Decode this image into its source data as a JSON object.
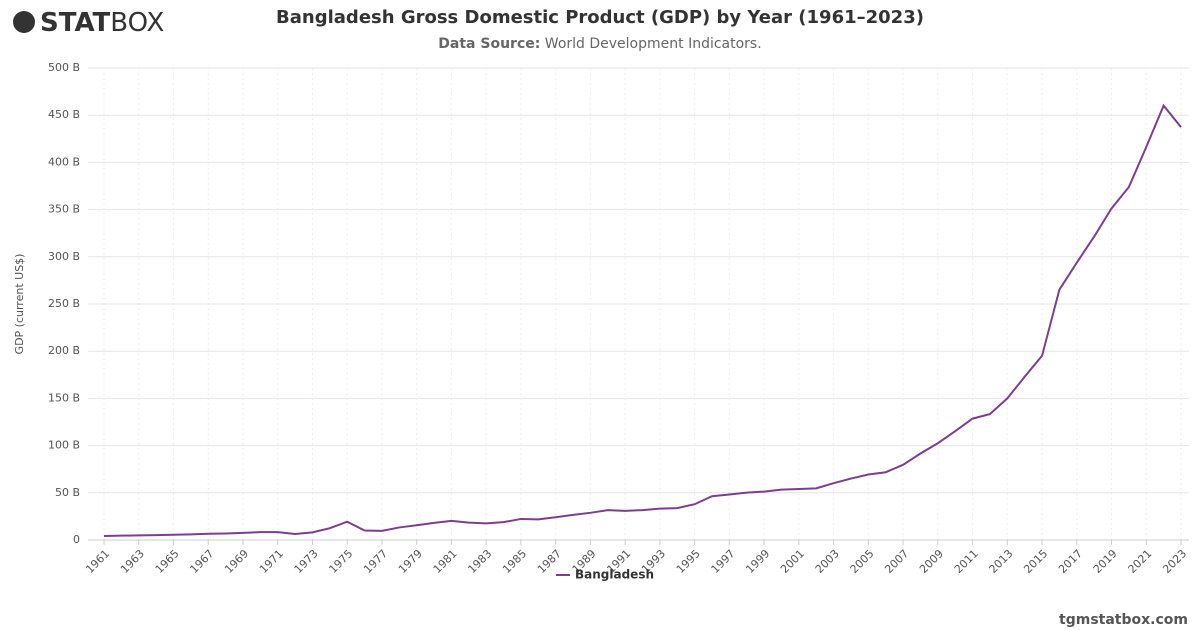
{
  "logo": {
    "bold": "STAT",
    "light": "BOX"
  },
  "watermark": "tgmstatbox.com",
  "chart_data": {
    "type": "line",
    "title": "Bangladesh Gross Domestic Product (GDP) by Year (1961–2023)",
    "subtitle_label": "Data Source:",
    "subtitle": "World Development Indicators.",
    "y_label": "GDP (current US$)",
    "x": [
      1961,
      1962,
      1963,
      1964,
      1965,
      1966,
      1967,
      1968,
      1969,
      1970,
      1971,
      1972,
      1973,
      1974,
      1975,
      1976,
      1977,
      1978,
      1979,
      1980,
      1981,
      1982,
      1983,
      1984,
      1985,
      1986,
      1987,
      1988,
      1989,
      1990,
      1991,
      1992,
      1993,
      1994,
      1995,
      1996,
      1997,
      1998,
      1999,
      2000,
      2001,
      2002,
      2003,
      2004,
      2005,
      2006,
      2007,
      2008,
      2009,
      2010,
      2011,
      2012,
      2013,
      2014,
      2015,
      2016,
      2017,
      2018,
      2019,
      2020,
      2021,
      2022,
      2023
    ],
    "series": [
      {
        "name": "Bangladesh",
        "color": "#7b3f8e",
        "values": [
          4.3,
          4.6,
          4.9,
          5.2,
          5.6,
          6.0,
          6.6,
          6.9,
          7.6,
          8.3,
          8.4,
          6.3,
          8.1,
          12.5,
          19.4,
          10.1,
          9.7,
          13.3,
          15.6,
          18.1,
          20.2,
          18.4,
          17.6,
          18.9,
          22.3,
          21.8,
          24.1,
          26.6,
          28.8,
          31.6,
          30.9,
          31.7,
          33.2,
          33.8,
          37.9,
          46.4,
          48.2,
          50.2,
          51.3,
          53.4,
          54.0,
          54.7,
          60.2,
          65.1,
          69.4,
          71.8,
          79.6,
          91.6,
          102.5,
          115.3,
          128.6,
          133.4,
          150.0,
          172.9,
          195.1,
          265.2,
          293.8,
          321.4,
          351.2,
          374.0,
          416.3,
          460.2,
          437.4
        ]
      }
    ],
    "xlim": [
      1961,
      2023
    ],
    "xticks": [
      1961,
      1963,
      1965,
      1967,
      1969,
      1971,
      1973,
      1975,
      1977,
      1979,
      1981,
      1983,
      1985,
      1987,
      1989,
      1991,
      1993,
      1995,
      1997,
      1999,
      2001,
      2003,
      2005,
      2007,
      2009,
      2011,
      2013,
      2015,
      2017,
      2019,
      2021,
      2023
    ],
    "ylim": [
      0,
      500
    ],
    "yticks": [
      0,
      {
        "value": 50,
        "label": "50 B"
      },
      {
        "value": 100,
        "label": "100 B"
      },
      {
        "value": 150,
        "label": "150 B"
      },
      {
        "value": 200,
        "label": "200 B"
      },
      {
        "value": 250,
        "label": "250 B"
      },
      {
        "value": 300,
        "label": "300 B"
      },
      {
        "value": 350,
        "label": "350 B"
      },
      {
        "value": 400,
        "label": "400 B"
      },
      {
        "value": 450,
        "label": "450 B"
      },
      {
        "value": 500,
        "label": "500 B"
      }
    ],
    "grid": true,
    "legend": "bottom"
  }
}
